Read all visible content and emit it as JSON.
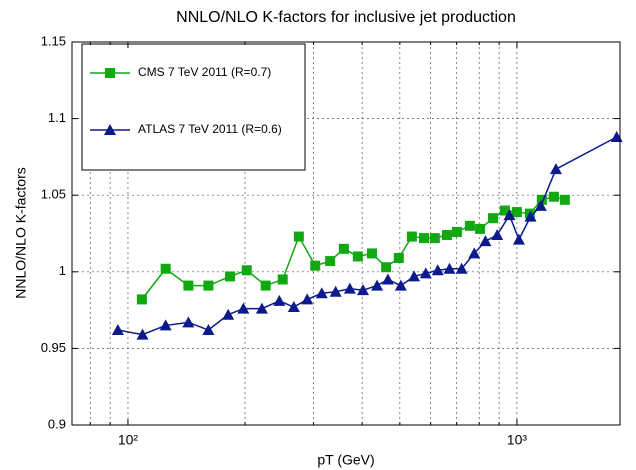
{
  "chart_data": {
    "type": "line",
    "title": "NNLO/NLO K-factors for inclusive jet production",
    "xlabel": "pT (GeV)",
    "ylabel": "NNLO/NLO K-factors",
    "xscale": "log",
    "xlim": [
      71.8,
      1841
    ],
    "xticks": [
      {
        "value": 100,
        "label": "10²"
      },
      {
        "value": 1000,
        "label": "10³"
      }
    ],
    "ylim": [
      0.9,
      1.15
    ],
    "yticks": [
      0.9,
      0.95,
      1,
      1.05,
      1.1,
      1.15
    ],
    "grid": true,
    "legend": "upper left",
    "series": [
      {
        "name": "CMS 7 TeV 2011 (R=0.7)",
        "color": "#11a811",
        "marker": "square",
        "x": [
          108.6,
          125,
          143,
          161,
          183,
          202,
          226,
          250,
          275,
          303,
          331,
          359,
          390,
          424,
          461,
          497,
          537,
          577,
          615,
          661,
          701,
          757,
          804,
          868,
          931,
          1000,
          1080,
          1159,
          1245,
          1328
        ],
        "values": [
          0.982,
          1.002,
          0.991,
          0.991,
          0.997,
          1.001,
          0.991,
          0.995,
          1.023,
          1.004,
          1.007,
          1.015,
          1.01,
          1.012,
          1.003,
          1.009,
          1.023,
          1.022,
          1.022,
          1.024,
          1.026,
          1.03,
          1.028,
          1.035,
          1.04,
          1.039,
          1.038,
          1.047,
          1.049,
          1.047
        ]
      },
      {
        "name": "ATLAS 7 TeV 2011 (R=0.6)",
        "color": "#0c1a8c",
        "marker": "triangle",
        "x": [
          94.2,
          109,
          125,
          143,
          161,
          181,
          198,
          221,
          245,
          267,
          289,
          315,
          342,
          372,
          402,
          437,
          466,
          503,
          544,
          583,
          626,
          671,
          721,
          777,
          830,
          890,
          957,
          1012,
          1084,
          1152,
          1260,
          1805
        ],
        "values": [
          0.962,
          0.959,
          0.965,
          0.967,
          0.962,
          0.972,
          0.976,
          0.976,
          0.981,
          0.977,
          0.982,
          0.986,
          0.987,
          0.989,
          0.988,
          0.991,
          0.995,
          0.991,
          0.997,
          0.999,
          1.001,
          1.002,
          1.002,
          1.012,
          1.02,
          1.024,
          1.037,
          1.021,
          1.036,
          1.043,
          1.067,
          1.088
        ]
      }
    ]
  }
}
